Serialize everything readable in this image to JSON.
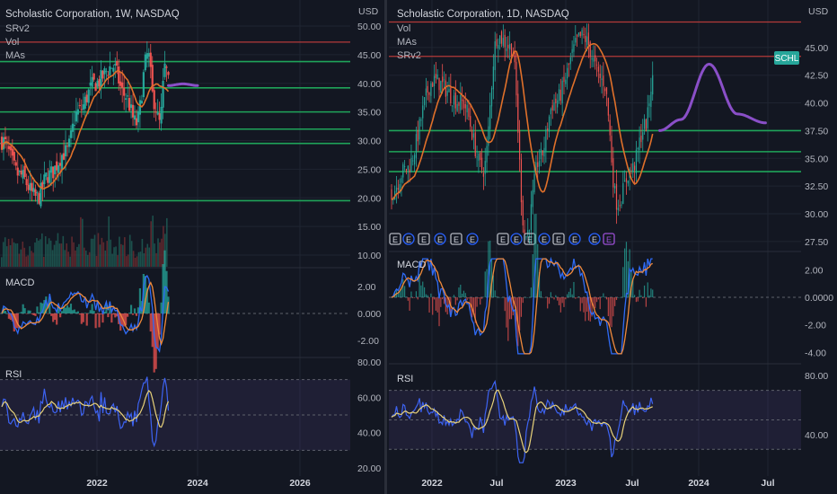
{
  "colors": {
    "background": "#131722",
    "grid": "#1f2431",
    "text": "#b2b5be",
    "title": "#d1d4dc",
    "green_level": "#1fa45a",
    "red_level": "#b43a3a",
    "ma_orange": "#e0702a",
    "projection": "#8a4fc8",
    "macd_blue": "#2f6bf5",
    "signal_orange": "#f08a3c",
    "hist_green": "#26a69a",
    "hist_red": "#ef5350",
    "rsi_blue": "#3d63f2",
    "rsi_yellow": "#e8d27a",
    "rsi_band": "#7e57c2",
    "earnings_blue": "#2962ff",
    "earnings_gray": "#b2b5be",
    "earnings_purple": "#9c4fd6",
    "schl_badge": "#26a69a"
  },
  "chart_data": [
    {
      "id": "weekly",
      "type": "candlestick",
      "title": "Scholastic Corporation, 1W, NASDAQ",
      "indicators": [
        "SRv2",
        "Vol",
        "MAs"
      ],
      "price_unit": "USD",
      "x_ticks": [
        "2022",
        "2024",
        "2026"
      ],
      "price_axis": {
        "ticks": [
          "50.00",
          "45.00",
          "40.00",
          "35.00",
          "30.00",
          "25.00",
          "20.00",
          "15.00",
          "10.00"
        ],
        "range": [
          10,
          50
        ]
      },
      "levels_green": [
        43.8,
        39.2,
        35.0,
        32.0,
        29.5,
        19.5
      ],
      "levels_red": [
        47.2
      ],
      "path_key_points": [
        [
          2020.3,
          30
        ],
        [
          2020.6,
          24
        ],
        [
          2020.9,
          20
        ],
        [
          2021.1,
          24
        ],
        [
          2021.4,
          28
        ],
        [
          2021.6,
          35
        ],
        [
          2021.9,
          40
        ],
        [
          2022.2,
          43
        ],
        [
          2022.4,
          38
        ],
        [
          2022.6,
          33
        ],
        [
          2022.8,
          45
        ],
        [
          2022.9,
          37
        ],
        [
          2023.0,
          33
        ],
        [
          2023.1,
          43
        ],
        [
          2023.15,
          40
        ]
      ],
      "projection": [
        [
          2023.15,
          39.6
        ],
        [
          2023.4,
          39.9
        ],
        [
          2023.65,
          39.6
        ]
      ],
      "macd": {
        "ticks": [
          "2.00",
          "0.000",
          "-2.00"
        ],
        "range": [
          -3,
          3
        ]
      },
      "rsi": {
        "ticks": [
          "80.00",
          "60.00",
          "40.00",
          "20.00"
        ],
        "range": [
          20,
          80
        ],
        "band": [
          30,
          70
        ]
      }
    },
    {
      "id": "daily",
      "type": "candlestick",
      "title": "Scholastic Corporation, 1D, NASDAQ",
      "indicators": [
        "SRv2",
        "Vol",
        "MAs"
      ],
      "price_unit": "USD",
      "badge": "SCHL",
      "x_ticks": [
        "2022",
        "Jul",
        "2023",
        "Jul",
        "2024",
        "Jul"
      ],
      "price_axis": {
        "ticks": [
          "45.00",
          "42.50",
          "40.00",
          "37.50",
          "35.00",
          "32.50",
          "30.00",
          "27.50"
        ],
        "range": [
          27,
          47.5
        ]
      },
      "levels_green": [
        37.5,
        35.6,
        33.8
      ],
      "levels_red": [
        47.3,
        44.2
      ],
      "path_key_points": [
        [
          2021.9,
          32
        ],
        [
          2022.0,
          34
        ],
        [
          2022.2,
          42
        ],
        [
          2022.4,
          40
        ],
        [
          2022.55,
          34
        ],
        [
          2022.65,
          46
        ],
        [
          2022.75,
          45
        ],
        [
          2022.85,
          28
        ],
        [
          2022.95,
          35
        ],
        [
          2023.05,
          40
        ],
        [
          2023.25,
          46
        ],
        [
          2023.4,
          42
        ],
        [
          2023.5,
          31
        ],
        [
          2023.6,
          34
        ],
        [
          2023.7,
          38
        ],
        [
          2023.75,
          42
        ]
      ],
      "projection": [
        [
          2023.8,
          37.5
        ],
        [
          2023.95,
          38.5
        ],
        [
          2024.15,
          43.5
        ],
        [
          2024.35,
          39
        ],
        [
          2024.55,
          38.2
        ]
      ],
      "earnings_markers": [
        "E",
        "E",
        "E",
        "E",
        "E",
        "E",
        "E",
        "E",
        "E",
        "E",
        "E",
        "E",
        "E",
        "E"
      ],
      "earnings_types": [
        "gray",
        "blue",
        "gray",
        "blue",
        "gray",
        "blue",
        "gray",
        "blue",
        "gray",
        "blue",
        "gray",
        "blue",
        "blue",
        "purple"
      ],
      "macd": {
        "ticks": [
          "2.00",
          "0.0000",
          "-2.00",
          "-4.00"
        ],
        "range": [
          -4.3,
          3
        ]
      },
      "rsi": {
        "ticks": [
          "80.00",
          "40.00"
        ],
        "range": [
          18,
          85
        ],
        "band": [
          30,
          70
        ]
      }
    }
  ]
}
